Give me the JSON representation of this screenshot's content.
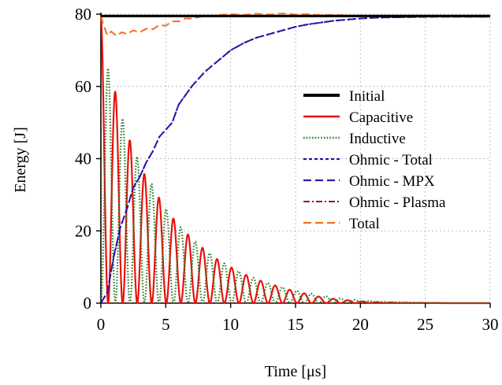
{
  "chart_data": {
    "type": "line",
    "title": "",
    "xlabel": "Time [μs]",
    "ylabel": "Energy [J]",
    "xlim": [
      0,
      30
    ],
    "ylim": [
      0,
      80
    ],
    "xticks": [
      0,
      5,
      10,
      15,
      20,
      25,
      30
    ],
    "yticks": [
      0,
      20,
      40,
      60,
      80
    ],
    "grid": true,
    "legend_position": "right, middle",
    "series": [
      {
        "name": "Initial",
        "color": "#000000",
        "style": "solid-thick",
        "x": [
          0,
          30
        ],
        "y": [
          79.5,
          79.5
        ]
      },
      {
        "name": "Capacitive",
        "color": "#e8120c",
        "style": "solid",
        "model": "oscillating",
        "period": 1.12,
        "peaks": [
          [
            0,
            79.5
          ],
          [
            1.12,
            58.4
          ],
          [
            2.24,
            45.0
          ],
          [
            3.36,
            35.7
          ],
          [
            4.48,
            29.2
          ],
          [
            5.6,
            23.4
          ],
          [
            6.72,
            19.0
          ],
          [
            7.84,
            15.3
          ],
          [
            8.96,
            12.2
          ],
          [
            10.08,
            9.8
          ],
          [
            11.2,
            7.8
          ],
          [
            12.32,
            6.2
          ],
          [
            13.44,
            4.9
          ],
          [
            14.56,
            3.7
          ],
          [
            15.68,
            2.7
          ],
          [
            16.8,
            1.8
          ],
          [
            17.92,
            1.2
          ],
          [
            19.04,
            0.8
          ],
          [
            20.16,
            0.5
          ],
          [
            21.28,
            0.3
          ],
          [
            22.4,
            0.2
          ],
          [
            24,
            0.1
          ],
          [
            26,
            0.05
          ],
          [
            30,
            0.0
          ]
        ]
      },
      {
        "name": "Inductive",
        "color": "#1f7a1f",
        "style": "dotted",
        "model": "oscillating",
        "period": 1.12,
        "peaks": [
          [
            0.56,
            65.0
          ],
          [
            1.68,
            51.0
          ],
          [
            2.8,
            40.5
          ],
          [
            3.92,
            33.0
          ],
          [
            5.04,
            26.0
          ],
          [
            6.16,
            21.0
          ],
          [
            7.28,
            17.0
          ],
          [
            8.4,
            13.8
          ],
          [
            9.52,
            11.0
          ],
          [
            10.64,
            8.8
          ],
          [
            11.76,
            7.0
          ],
          [
            12.88,
            5.6
          ],
          [
            14.0,
            4.4
          ],
          [
            15.12,
            3.4
          ],
          [
            16.24,
            2.6
          ],
          [
            17.36,
            1.9
          ],
          [
            18.48,
            1.3
          ],
          [
            19.6,
            0.9
          ],
          [
            20.72,
            0.6
          ],
          [
            22,
            0.35
          ],
          [
            24,
            0.2
          ],
          [
            26,
            0.1
          ],
          [
            30,
            0.0
          ]
        ]
      },
      {
        "name": "Ohmic - Total",
        "color": "#1a1aa6",
        "style": "short-dash",
        "x": [
          0,
          0.5,
          1,
          1.5,
          2,
          2.5,
          3,
          3.5,
          4,
          4.5,
          5,
          5.5,
          6,
          7,
          8,
          9,
          10,
          11,
          12,
          13,
          14,
          15,
          16,
          17,
          18,
          19,
          20,
          21,
          22,
          24,
          26,
          28,
          30
        ],
        "y": [
          0,
          3,
          13,
          21,
          26,
          32,
          35,
          39,
          42,
          46,
          48,
          50,
          55,
          60,
          64,
          67,
          70,
          72,
          73.5,
          74.5,
          75.5,
          76.5,
          77.2,
          77.7,
          78.2,
          78.5,
          78.8,
          79.0,
          79.1,
          79.2,
          79.3,
          79.3,
          79.3
        ]
      },
      {
        "name": "Ohmic - MPX",
        "color": "#3a14a8",
        "style": "long-dash",
        "x": [
          0,
          0.5,
          1,
          1.5,
          2,
          2.5,
          3,
          3.5,
          4,
          4.5,
          5,
          5.5,
          6,
          7,
          8,
          9,
          10,
          11,
          12,
          13,
          14,
          15,
          16,
          17,
          18,
          19,
          20,
          21,
          22,
          24,
          26,
          28,
          30
        ],
        "y": [
          0,
          3,
          13,
          21,
          26,
          32,
          35,
          39,
          42,
          46,
          48,
          50,
          55,
          60,
          64,
          67,
          70,
          72,
          73.5,
          74.5,
          75.5,
          76.5,
          77.2,
          77.7,
          78.2,
          78.5,
          78.8,
          79.0,
          79.1,
          79.2,
          79.3,
          79.3,
          79.3
        ]
      },
      {
        "name": "Ohmic - Plasma",
        "color": "#8b1a3a",
        "style": "dash-dot",
        "x": [
          0,
          30
        ],
        "y": [
          0,
          0
        ]
      },
      {
        "name": "Total",
        "color": "#f07020",
        "style": "long-dash",
        "x": [
          0,
          0.2,
          0.5,
          0.8,
          1.2,
          1.6,
          2,
          2.5,
          3,
          3.5,
          4,
          4.5,
          5,
          5.5,
          6,
          6.5,
          7,
          8,
          9,
          10,
          11,
          12,
          13,
          14,
          15,
          16,
          17,
          18,
          19,
          20,
          22,
          24,
          26,
          28,
          30
        ],
        "y": [
          79.5,
          77,
          74.2,
          75.2,
          74.0,
          75.0,
          74.5,
          75.5,
          75.0,
          76.0,
          75.8,
          77.0,
          76.8,
          78.0,
          78.0,
          78.8,
          78.8,
          79.5,
          79.7,
          80.0,
          79.8,
          80.1,
          79.9,
          80.2,
          79.9,
          80.0,
          79.7,
          79.8,
          79.6,
          79.6,
          79.5,
          79.5,
          79.5,
          79.5,
          79.5
        ]
      }
    ]
  }
}
